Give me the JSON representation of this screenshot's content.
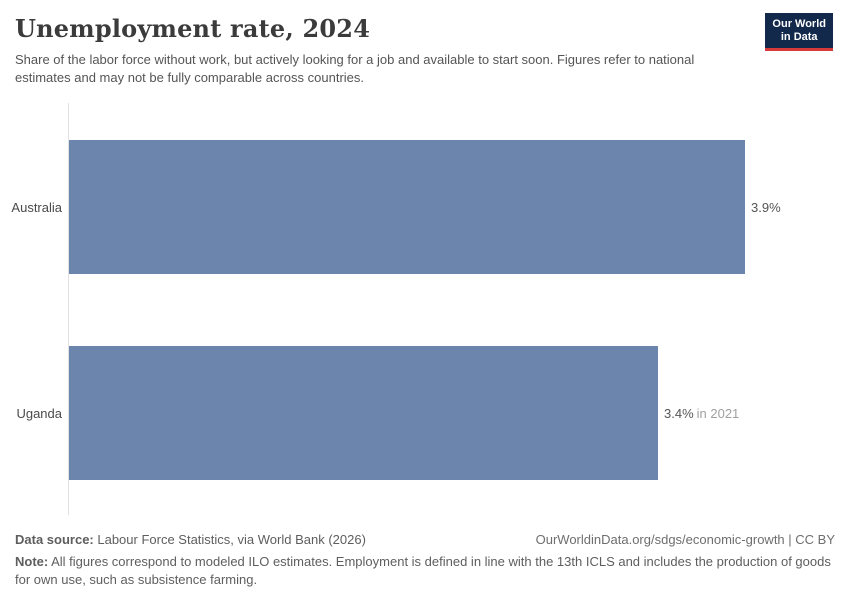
{
  "header": {
    "title": "Unemployment rate, 2024",
    "subtitle": "Share of the labor force without work, but actively looking for a job and available to start soon. Figures refer to national estimates and may not be fully comparable across countries.",
    "logo": {
      "line1": "Our World",
      "line2": "in Data"
    }
  },
  "chart_data": {
    "type": "bar",
    "orientation": "horizontal",
    "title": "Unemployment rate, 2024",
    "categories": [
      "Australia",
      "Uganda"
    ],
    "values": [
      3.9,
      3.4
    ],
    "value_labels": [
      "3.9%",
      "3.4%"
    ],
    "value_suffixes": [
      "",
      "in 2021"
    ],
    "unit": "%",
    "xlim": [
      0,
      3.9
    ],
    "grid": false,
    "legend": "none",
    "bar_color": "#6c85ac",
    "axis_line_color": "#e2e2e2"
  },
  "footer": {
    "datasource_label": "Data source:",
    "datasource_text": " Labour Force Statistics, via World Bank (2026)",
    "link": "OurWorldinData.org/sdgs/economic-growth | CC BY",
    "note_label": "Note:",
    "note_text": " All figures correspond to modeled ILO estimates. Employment is defined in line with the 13th ICLS and includes the production of goods for own use, such as subsistence farming."
  },
  "colors": {
    "bar": "#6c85ac",
    "logo_bg": "#12294b",
    "logo_accent": "#d73a3a",
    "title_text": "#3b3b3b",
    "body_text": "#555555",
    "muted_text": "#a0a0a0"
  }
}
